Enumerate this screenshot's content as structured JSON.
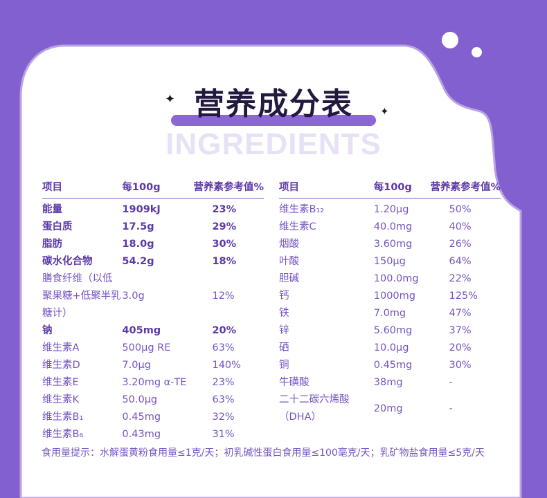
{
  "title": "营养成分表",
  "subtitle_watermark": "INGREDIENTS",
  "colors": {
    "background": "#8360cf",
    "card": "#ffffff",
    "text": "#7455c2",
    "text_bold": "#5c3aa8",
    "title": "#23193f"
  },
  "headers": {
    "item": "项目",
    "per100g": "每100g",
    "nrv": "营养素参考值%"
  },
  "left_rows": [
    {
      "item": "能量",
      "per100g": "1909kJ",
      "nrv": "23%",
      "bold": true
    },
    {
      "item": "蛋白质",
      "per100g": "17.5g",
      "nrv": "29%",
      "bold": true
    },
    {
      "item": "脂肪",
      "per100g": "18.0g",
      "nrv": "30%",
      "bold": true
    },
    {
      "item": "碳水化合物",
      "per100g": "54.2g",
      "nrv": "18%",
      "bold": true
    },
    {
      "item": "膳食纤维（以低聚果糖+低聚半乳糖计）",
      "per100g": "3.0g",
      "nrv": "12%",
      "bold": false
    },
    {
      "item": "钠",
      "per100g": "405mg",
      "nrv": "20%",
      "bold": true
    },
    {
      "item": "维生素A",
      "per100g": "500μg RE",
      "nrv": "63%",
      "bold": false
    },
    {
      "item": "维生素D",
      "per100g": "7.0μg",
      "nrv": "140%",
      "bold": false
    },
    {
      "item": "维生素E",
      "per100g": "3.20mg α-TE",
      "nrv": "23%",
      "bold": false
    },
    {
      "item": "维生素K",
      "per100g": "50.0μg",
      "nrv": "63%",
      "bold": false
    },
    {
      "item": "维生素B₁",
      "per100g": "0.45mg",
      "nrv": "32%",
      "bold": false
    },
    {
      "item": "维生素B₆",
      "per100g": "0.43mg",
      "nrv": "31%",
      "bold": false
    }
  ],
  "right_rows": [
    {
      "item": "维生素B₁₂",
      "per100g": "1.20μg",
      "nrv": "50%"
    },
    {
      "item": "维生素C",
      "per100g": "40.0mg",
      "nrv": "40%"
    },
    {
      "item": "烟酸",
      "per100g": "3.60mg",
      "nrv": "26%"
    },
    {
      "item": "叶酸",
      "per100g": "150μg",
      "nrv": "64%"
    },
    {
      "item": "胆碱",
      "per100g": "100.0mg",
      "nrv": "22%"
    },
    {
      "item": "钙",
      "per100g": "1000mg",
      "nrv": "125%"
    },
    {
      "item": "铁",
      "per100g": "7.0mg",
      "nrv": "47%"
    },
    {
      "item": "锌",
      "per100g": "5.60mg",
      "nrv": "37%"
    },
    {
      "item": "硒",
      "per100g": "10.0μg",
      "nrv": "20%"
    },
    {
      "item": "铜",
      "per100g": "0.45mg",
      "nrv": "30%"
    },
    {
      "item": "牛磺酸",
      "per100g": "38mg",
      "nrv": "-"
    },
    {
      "item": "二十二碳六烯酸（DHA）",
      "per100g": "20mg",
      "nrv": "-"
    }
  ],
  "note": "食用量提示：水解蛋黄粉食用量≤1克/天；初乳碱性蛋白食用量≤100毫克/天；乳矿物盐食用量≤5克/天"
}
